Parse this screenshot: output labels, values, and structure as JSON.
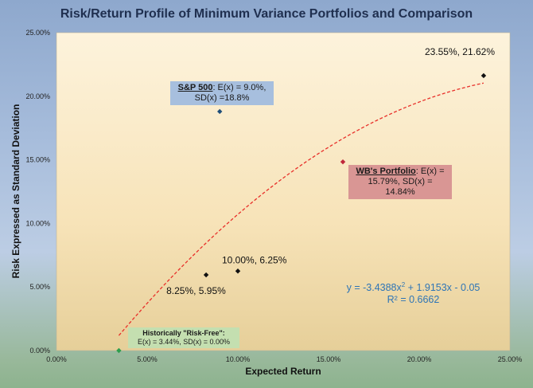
{
  "chart_data": {
    "type": "scatter",
    "title": "Risk/Return Profile of Minimum Variance Portfolios and Comparison",
    "xlabel": "Expected Return",
    "ylabel": "Risk Expressed as Standard Deviation",
    "xlim": [
      0,
      0.25
    ],
    "ylim": [
      0,
      0.25
    ],
    "x_ticks": [
      "0.00%",
      "5.00%",
      "10.00%",
      "15.00%",
      "20.00%",
      "25.00%"
    ],
    "y_ticks": [
      "0.00%",
      "5.00%",
      "10.00%",
      "15.00%",
      "20.00%",
      "25.00%"
    ],
    "grid": false,
    "points": [
      {
        "x": 0.0344,
        "y": 0.0,
        "color": "#2e9e4e"
      },
      {
        "x": 0.0825,
        "y": 0.0595,
        "color": "#111111",
        "label": "8.25%, 5.95%"
      },
      {
        "x": 0.1,
        "y": 0.0625,
        "color": "#111111",
        "label": "10.00%, 6.25%"
      },
      {
        "x": 0.09,
        "y": 0.188,
        "color": "#1f4e79"
      },
      {
        "x": 0.1579,
        "y": 0.1484,
        "color": "#c0283a"
      },
      {
        "x": 0.2355,
        "y": 0.2162,
        "color": "#111111",
        "label": "23.55%, 21.62%"
      }
    ],
    "trendline": {
      "type": "polynomial",
      "coefficients": [
        -3.4388,
        1.9153,
        -0.05
      ],
      "x_range": [
        0.0344,
        0.2355
      ],
      "color": "#e8302a",
      "equation": "y = -3.4388x",
      "equation_exp": "2",
      "equation_rest": " + 1.9153x - 0.05",
      "r_squared": "R² = 0.6662"
    },
    "annotations": {
      "sp500": {
        "title": "S&P 500",
        "text1": ": E(x) = 9.0%,",
        "text2": "SD(x) =18.8%"
      },
      "wb": {
        "title": "WB's Portfolio",
        "text1": ": E(x) =",
        "text2": "15.79%, SD(x) =",
        "text3": "14.84%"
      },
      "rf": {
        "line1": "Historically \"Risk-Free\":",
        "line2": "E(x) = 3.44%, SD(x) = 0.00%"
      }
    }
  }
}
